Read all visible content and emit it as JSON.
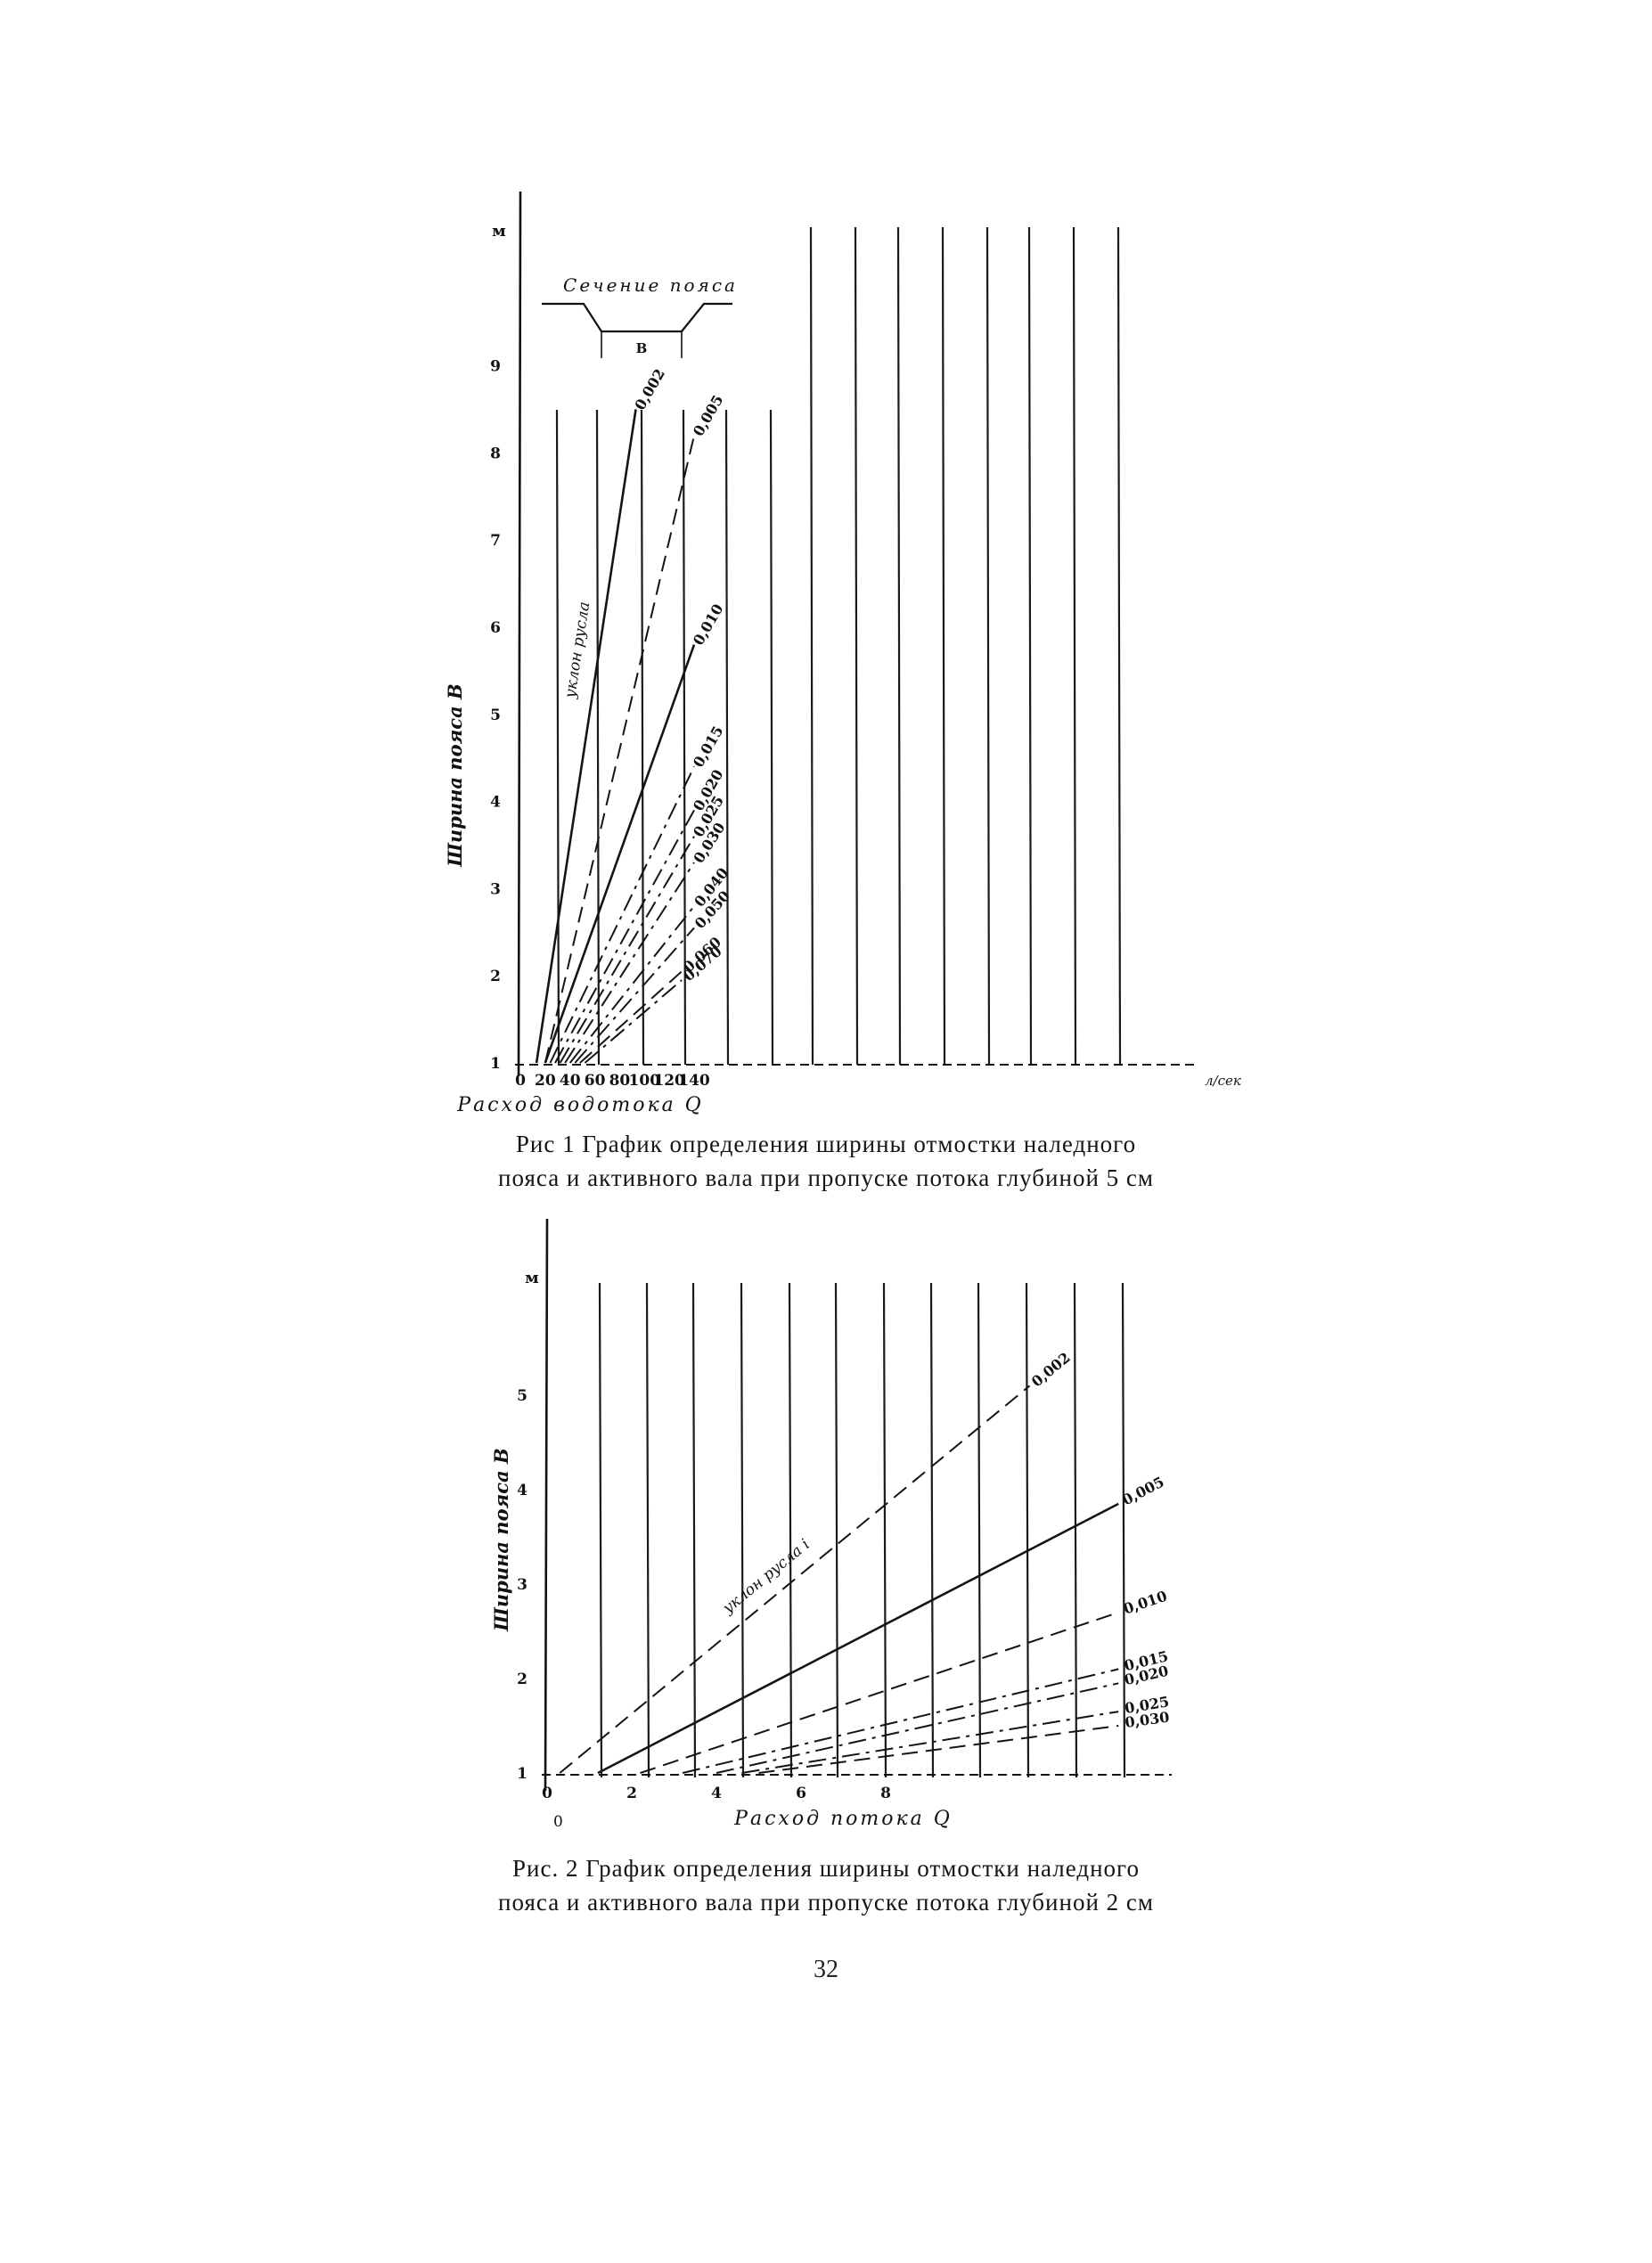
{
  "page": {
    "number": "32"
  },
  "figures": [
    {
      "caption_line1": "Рис 1 График определения ширины отмостки наледного",
      "caption_line2": "пояса и активного вала при пропуске потока глубиной 5 см"
    },
    {
      "caption_line1": "Рис. 2 График определения ширины отмостки наледного",
      "caption_line2": "пояса и активного вала при пропуске потока глубиной 2 см"
    }
  ],
  "chart_data": [
    {
      "type": "line",
      "ylabel": "Ширина пояса В",
      "y_unit": "м",
      "xlabel": "Расход водотока Q",
      "x_unit": "л/сек",
      "xlim": [
        0,
        140
      ],
      "ylim": [
        1,
        10
      ],
      "x_ticks": [
        "0",
        "20",
        "40",
        "60",
        "80",
        "100",
        "120",
        "140"
      ],
      "y_ticks": [
        "1",
        "2",
        "3",
        "4",
        "5",
        "6",
        "7",
        "8",
        "9"
      ],
      "grid": "vertical",
      "inset_title": "Сечение пояса",
      "inset_symbol": "В",
      "curve_annotation": "уклон русла",
      "series": [
        {
          "name": "0,002",
          "style": "solid",
          "x": [
            13,
            93
          ],
          "y": [
            1.0,
            8.5
          ]
        },
        {
          "name": "0,005",
          "style": "dashed",
          "x": [
            20,
            140
          ],
          "y": [
            1.0,
            8.2
          ]
        },
        {
          "name": "0,010",
          "style": "solid",
          "x": [
            20,
            140
          ],
          "y": [
            1.0,
            5.8
          ]
        },
        {
          "name": "0,015",
          "style": "dashdot",
          "x": [
            24,
            140
          ],
          "y": [
            1.0,
            4.4
          ]
        },
        {
          "name": "0,020",
          "style": "dashdot",
          "x": [
            28,
            140
          ],
          "y": [
            1.0,
            3.9
          ]
        },
        {
          "name": "0,025",
          "style": "dashdot",
          "x": [
            32,
            140
          ],
          "y": [
            1.0,
            3.6
          ]
        },
        {
          "name": "0,030",
          "style": "dashdot",
          "x": [
            36,
            140
          ],
          "y": [
            1.0,
            3.3
          ]
        },
        {
          "name": "0,040",
          "style": "dashdot",
          "x": [
            40,
            140
          ],
          "y": [
            1.0,
            2.8
          ]
        },
        {
          "name": "0,050",
          "style": "dashdot",
          "x": [
            44,
            140
          ],
          "y": [
            1.0,
            2.55
          ]
        },
        {
          "name": "0,060",
          "style": "dashed",
          "x": [
            48,
            130
          ],
          "y": [
            1.0,
            2.05
          ]
        },
        {
          "name": "0,070",
          "style": "dashdot",
          "x": [
            52,
            130
          ],
          "y": [
            1.0,
            1.95
          ]
        }
      ]
    },
    {
      "type": "line",
      "ylabel": "Ширина пояса В",
      "y_unit": "м",
      "xlabel": "Расход потока Q",
      "x_origin_label": "0",
      "xlim": [
        0,
        14
      ],
      "ylim": [
        1,
        6
      ],
      "x_ticks": [
        "0",
        "2",
        "4",
        "6",
        "8"
      ],
      "y_ticks": [
        "1",
        "2",
        "3",
        "4",
        "5"
      ],
      "grid": "vertical",
      "curve_annotation": "уклон русла i",
      "series": [
        {
          "name": "0,002",
          "style": "dashed",
          "x": [
            0.3,
            11.4
          ],
          "y": [
            1.0,
            5.1
          ]
        },
        {
          "name": "0,005",
          "style": "solid",
          "x": [
            1.2,
            13.5
          ],
          "y": [
            1.0,
            3.85
          ]
        },
        {
          "name": "0,010",
          "style": "dashed",
          "x": [
            2.2,
            13.5
          ],
          "y": [
            1.0,
            2.7
          ]
        },
        {
          "name": "0,015",
          "style": "dashdot",
          "x": [
            3.2,
            13.5
          ],
          "y": [
            1.0,
            2.1
          ]
        },
        {
          "name": "0,020",
          "style": "dashdot",
          "x": [
            4.0,
            13.5
          ],
          "y": [
            1.0,
            1.95
          ]
        },
        {
          "name": "0,025",
          "style": "dashdot",
          "x": [
            4.6,
            13.5
          ],
          "y": [
            1.0,
            1.65
          ]
        },
        {
          "name": "0,030",
          "style": "dashed",
          "x": [
            5.0,
            13.5
          ],
          "y": [
            1.0,
            1.5
          ]
        }
      ]
    }
  ]
}
